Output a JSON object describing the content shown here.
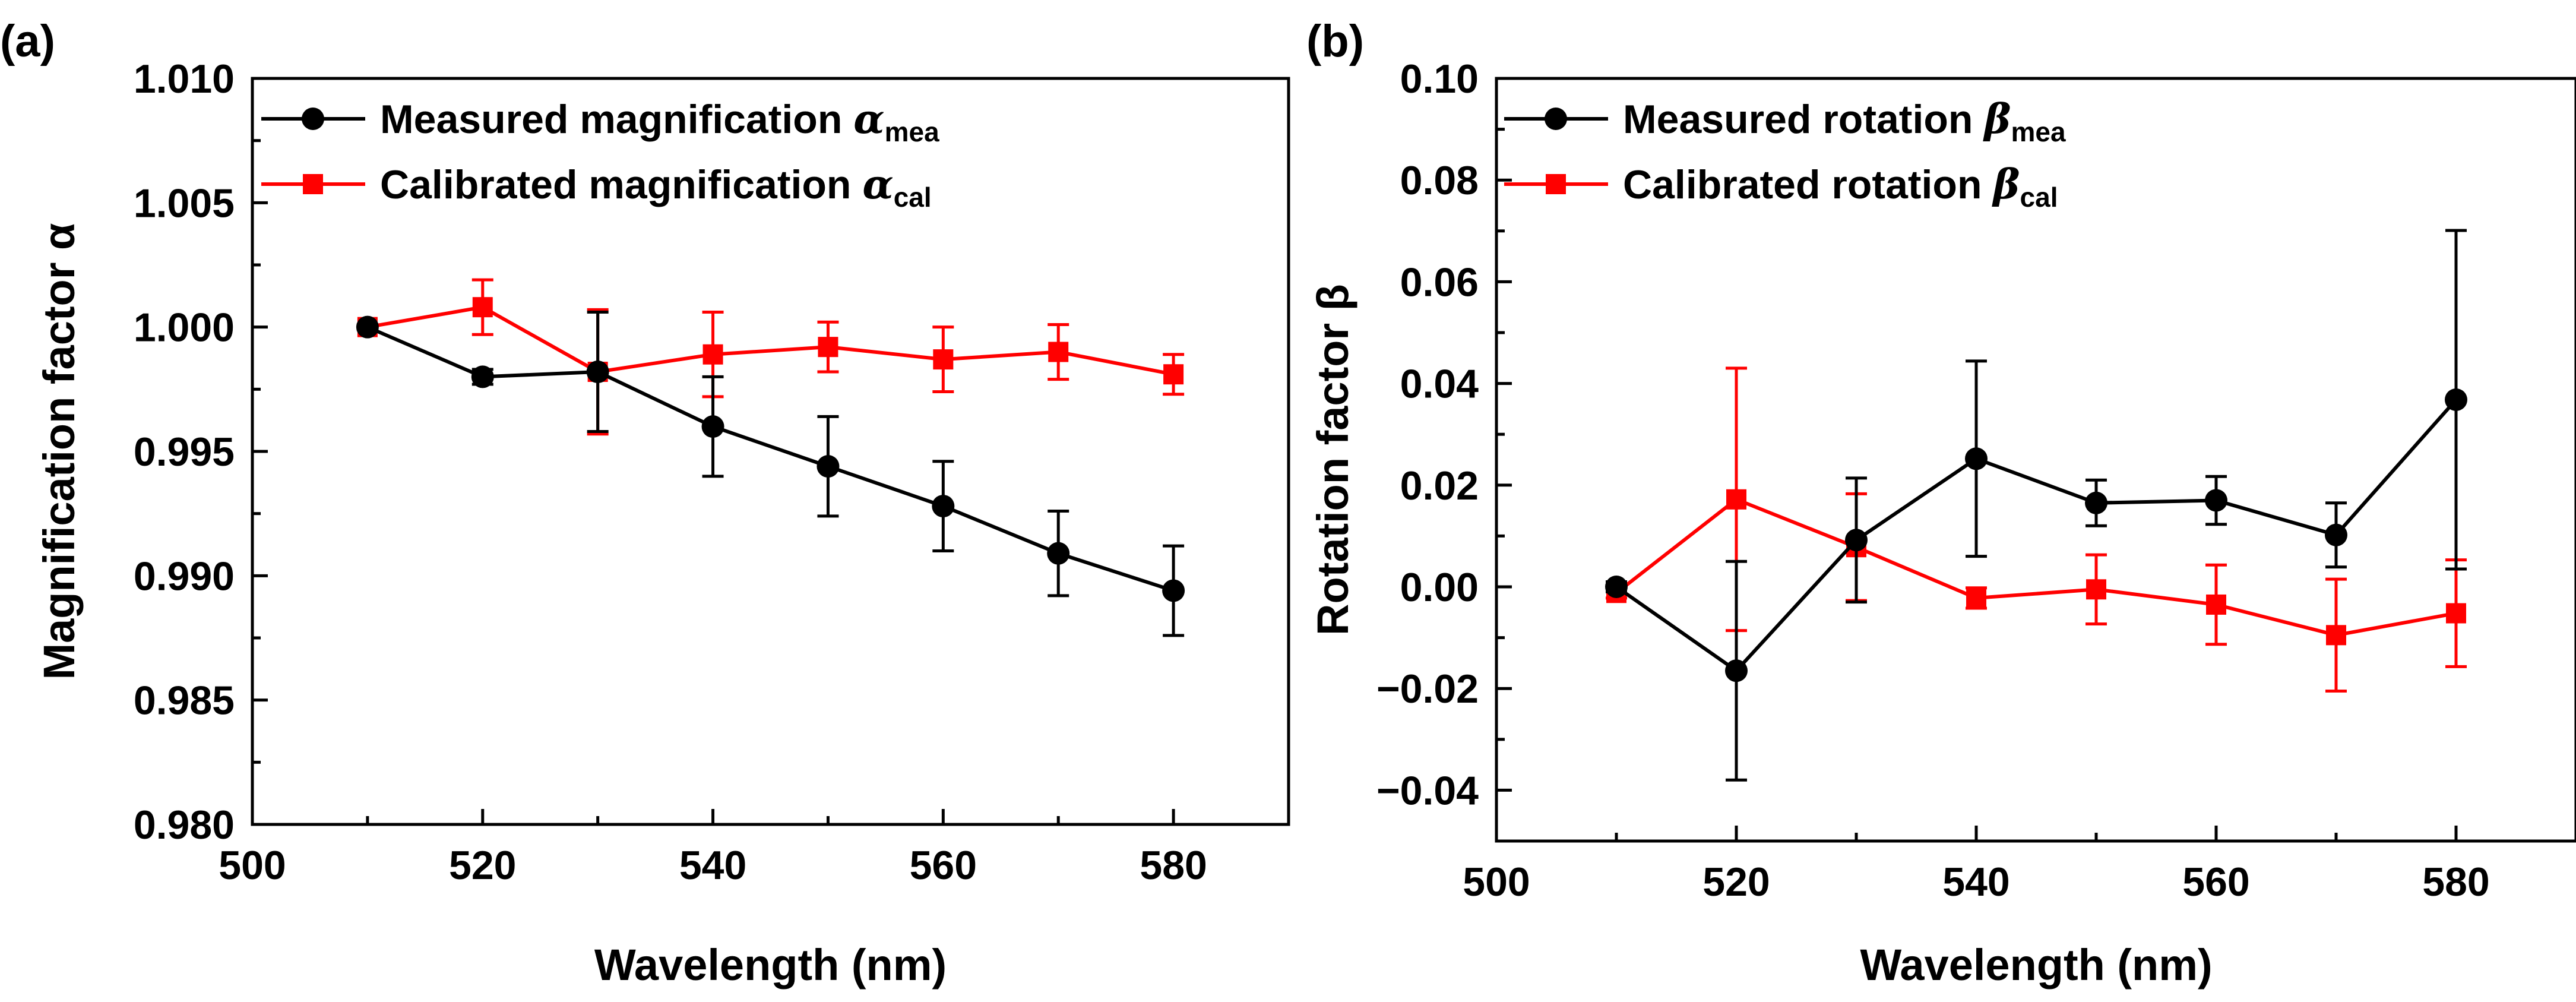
{
  "colors": {
    "measured": "#000000",
    "calibrated": "#ff0000",
    "axis": "#000000"
  },
  "chart_data": [
    {
      "panel_label": "(a)",
      "type": "line",
      "xlabel": "Wavelength (nm)",
      "ylabel": "Magnification factor α",
      "xlim": [
        500,
        590
      ],
      "ylim": [
        0.98,
        1.01
      ],
      "xticks": [
        500,
        520,
        540,
        560,
        580
      ],
      "xtick_labels": [
        "500",
        "520",
        "540",
        "560",
        "580"
      ],
      "yticks": [
        0.98,
        0.985,
        0.99,
        0.995,
        1.0,
        1.005,
        1.01
      ],
      "ytick_labels": [
        "0.980",
        "0.985",
        "0.990",
        "0.995",
        "1.000",
        "1.005",
        "1.010"
      ],
      "x": [
        510,
        520,
        530,
        540,
        550,
        560,
        570,
        580
      ],
      "legend_position": "top-left",
      "series": [
        {
          "name": "Measured magnification",
          "symbol": "α",
          "subscript": "mea",
          "marker": "circle",
          "color": "#000000",
          "values": [
            1.0,
            0.998,
            0.9982,
            0.996,
            0.9944,
            0.9928,
            0.9909,
            0.9894
          ],
          "errors": [
            0.0001,
            0.0003,
            0.0024,
            0.002,
            0.002,
            0.0018,
            0.0017,
            0.0018
          ]
        },
        {
          "name": "Calibrated magnification",
          "symbol": "α",
          "subscript": "cal",
          "marker": "square",
          "color": "#ff0000",
          "values": [
            1.0,
            1.0008,
            0.9982,
            0.9989,
            0.9992,
            0.9987,
            0.999,
            0.9981
          ],
          "errors": [
            0.0001,
            0.0011,
            0.0025,
            0.0017,
            0.001,
            0.0013,
            0.0011,
            0.0008
          ]
        }
      ]
    },
    {
      "panel_label": "(b)",
      "type": "line",
      "xlabel": "Wavelength (nm)",
      "ylabel": "Rotation factor β",
      "xlim": [
        500,
        590
      ],
      "ylim": [
        -0.05,
        0.1
      ],
      "xticks": [
        500,
        520,
        540,
        560,
        580
      ],
      "xtick_labels": [
        "500",
        "520",
        "540",
        "560",
        "580"
      ],
      "yticks": [
        -0.04,
        -0.02,
        0.0,
        0.02,
        0.04,
        0.06,
        0.08,
        0.1
      ],
      "ytick_labels": [
        "−0.04",
        "−0.02",
        "0.00",
        "0.02",
        "0.04",
        "0.06",
        "0.08",
        "0.10"
      ],
      "x": [
        510,
        520,
        530,
        540,
        550,
        560,
        570,
        580
      ],
      "legend_position": "top-left",
      "series": [
        {
          "name": "Measured rotation",
          "symbol": "β",
          "subscript": "mea",
          "marker": "circle",
          "color": "#000000",
          "values": [
            0.0,
            -0.0165,
            0.0092,
            0.0252,
            0.0165,
            0.017,
            0.0102,
            0.0368
          ],
          "errors": [
            0.001,
            0.0215,
            0.0122,
            0.0192,
            0.0045,
            0.0047,
            0.0063,
            0.0333
          ]
        },
        {
          "name": "Calibrated rotation",
          "symbol": "β",
          "subscript": "cal",
          "marker": "square",
          "color": "#ff0000",
          "values": [
            -0.0012,
            0.0172,
            0.0078,
            -0.0022,
            -0.0005,
            -0.0035,
            -0.0095,
            -0.0052
          ],
          "errors": [
            0.001,
            0.0258,
            0.0105,
            0.002,
            0.0068,
            0.0078,
            0.011,
            0.0105
          ]
        }
      ]
    }
  ]
}
